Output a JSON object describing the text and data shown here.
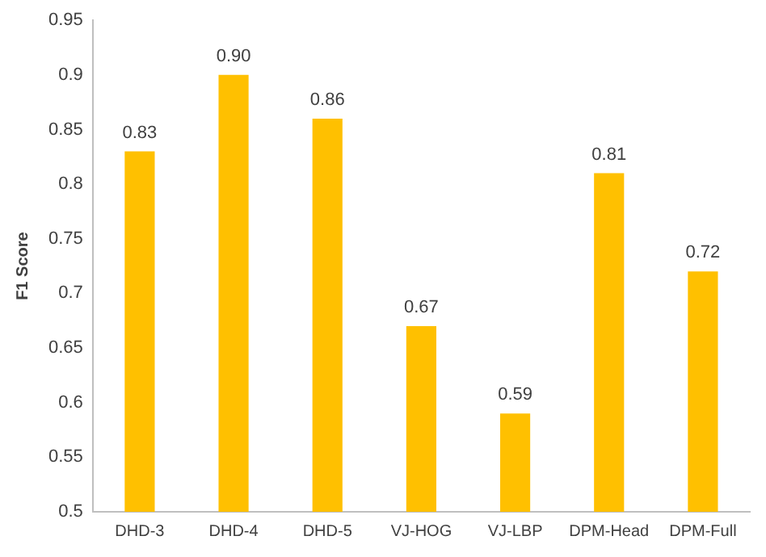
{
  "chart_data": {
    "type": "bar",
    "ylabel": "F1 Score",
    "categories": [
      "DHD-3",
      "DHD-4",
      "DHD-5",
      "VJ-HOG",
      "VJ-LBP",
      "DPM-Head",
      "DPM-Full"
    ],
    "values": [
      0.83,
      0.9,
      0.86,
      0.67,
      0.59,
      0.81,
      0.72
    ],
    "value_labels": [
      "0.83",
      "0.90",
      "0.86",
      "0.67",
      "0.59",
      "0.81",
      "0.72"
    ],
    "color": "#ffc000",
    "ylim": [
      0.5,
      0.95
    ],
    "yticks": [
      0.5,
      0.55,
      0.6,
      0.65,
      0.7,
      0.75,
      0.8,
      0.85,
      0.9,
      0.95
    ],
    "grid": false,
    "legend": false
  }
}
